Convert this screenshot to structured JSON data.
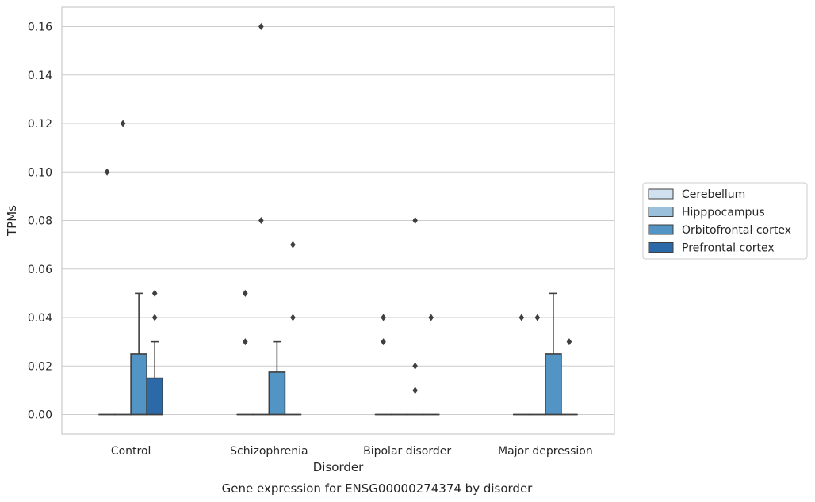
{
  "chart_data": {
    "type": "box",
    "title": "",
    "caption": "Gene expression for ENSG00000274374 by disorder",
    "xlabel": "Disorder",
    "ylabel": "TPMs",
    "ylim": [
      -0.008,
      0.168
    ],
    "yticks": [
      "0.00",
      "0.02",
      "0.04",
      "0.06",
      "0.08",
      "0.10",
      "0.12",
      "0.14",
      "0.16"
    ],
    "grid": "horizontal",
    "legend_position": "right",
    "categories": [
      "Control",
      "Schizophrenia",
      "Bipolar disorder",
      "Major depression"
    ],
    "series": [
      {
        "name": "Cerebellum",
        "color": "#d1e0ef",
        "boxes": [
          {
            "q1": 0,
            "median": 0,
            "q3": 0,
            "whisker_low": 0,
            "whisker_high": 0,
            "outliers": [
              0.1
            ]
          },
          {
            "q1": 0,
            "median": 0,
            "q3": 0,
            "whisker_low": 0,
            "whisker_high": 0,
            "outliers": [
              0.03,
              0.05
            ]
          },
          {
            "q1": 0,
            "median": 0,
            "q3": 0,
            "whisker_low": 0,
            "whisker_high": 0,
            "outliers": [
              0.03,
              0.04
            ]
          },
          {
            "q1": 0,
            "median": 0,
            "q3": 0,
            "whisker_low": 0,
            "whisker_high": 0,
            "outliers": [
              0.04
            ]
          }
        ]
      },
      {
        "name": "Hipppocampus",
        "color": "#9ac0dc",
        "boxes": [
          {
            "q1": 0,
            "median": 0,
            "q3": 0,
            "whisker_low": 0,
            "whisker_high": 0,
            "outliers": [
              0.12
            ]
          },
          {
            "q1": 0,
            "median": 0,
            "q3": 0,
            "whisker_low": 0,
            "whisker_high": 0,
            "outliers": [
              0.08,
              0.16
            ]
          },
          {
            "q1": 0,
            "median": 0,
            "q3": 0,
            "whisker_low": 0,
            "whisker_high": 0,
            "outliers": []
          },
          {
            "q1": 0,
            "median": 0,
            "q3": 0,
            "whisker_low": 0,
            "whisker_high": 0,
            "outliers": [
              0.04
            ]
          }
        ]
      },
      {
        "name": "Orbitofrontal cortex",
        "color": "#5294c3",
        "boxes": [
          {
            "q1": 0,
            "median": 0,
            "q3": 0.025,
            "whisker_low": 0,
            "whisker_high": 0.05,
            "outliers": []
          },
          {
            "q1": 0,
            "median": 0,
            "q3": 0.0175,
            "whisker_low": 0,
            "whisker_high": 0.03,
            "outliers": []
          },
          {
            "q1": 0,
            "median": 0,
            "q3": 0,
            "whisker_low": 0,
            "whisker_high": 0,
            "outliers": [
              0.01,
              0.02,
              0.08
            ]
          },
          {
            "q1": 0,
            "median": 0,
            "q3": 0.025,
            "whisker_low": 0,
            "whisker_high": 0.05,
            "outliers": []
          }
        ]
      },
      {
        "name": "Prefrontal cortex",
        "color": "#2b69a8",
        "boxes": [
          {
            "q1": 0,
            "median": 0,
            "q3": 0.015,
            "whisker_low": 0,
            "whisker_high": 0.03,
            "outliers": [
              0.04,
              0.05
            ]
          },
          {
            "q1": 0,
            "median": 0,
            "q3": 0,
            "whisker_low": 0,
            "whisker_high": 0,
            "outliers": [
              0.04,
              0.07
            ]
          },
          {
            "q1": 0,
            "median": 0,
            "q3": 0,
            "whisker_low": 0,
            "whisker_high": 0,
            "outliers": [
              0.04
            ]
          },
          {
            "q1": 0,
            "median": 0,
            "q3": 0,
            "whisker_low": 0,
            "whisker_high": 0,
            "outliers": [
              0.03
            ]
          }
        ]
      }
    ]
  }
}
